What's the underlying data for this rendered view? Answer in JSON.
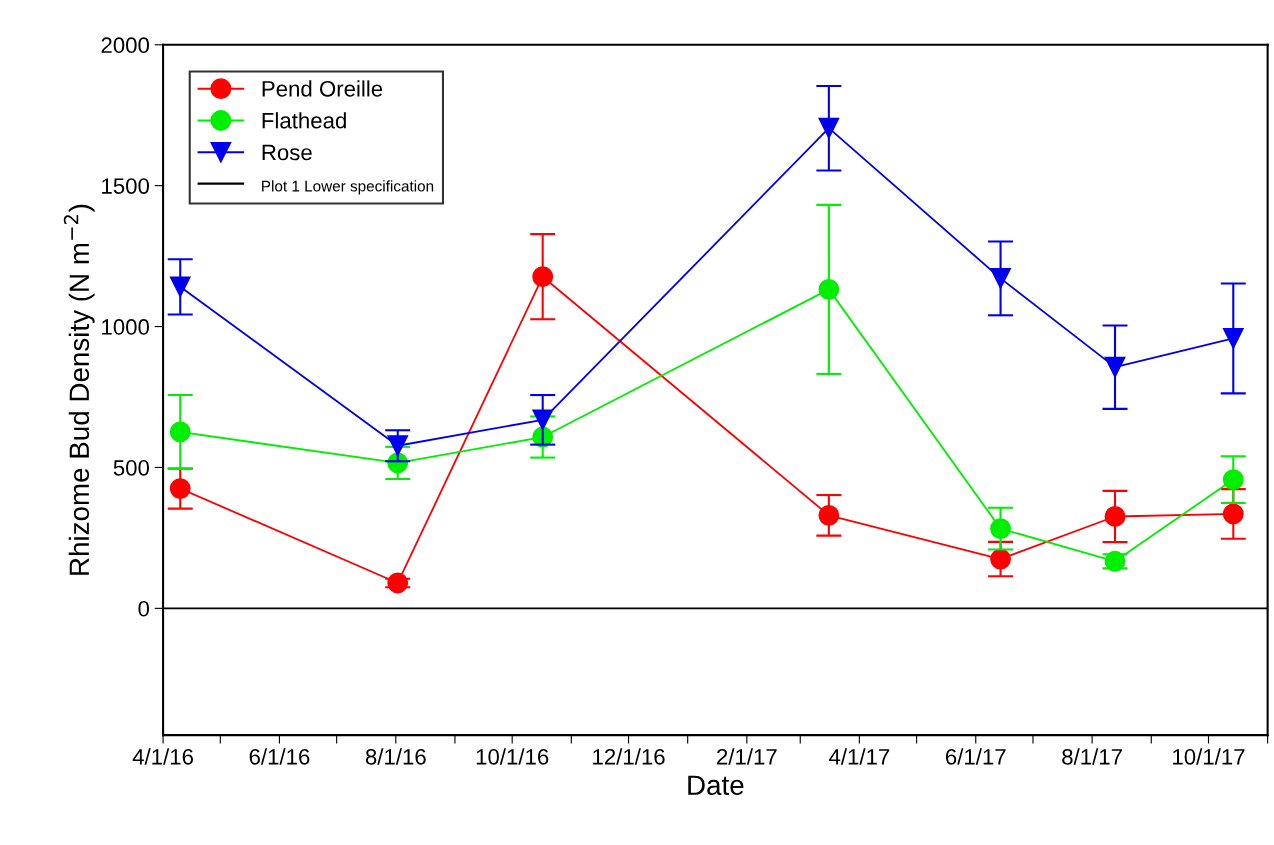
{
  "chart_data": {
    "type": "line",
    "xlabel": "Date",
    "ylabel": "Rhizome Bud Density (N m$^{−2}$)",
    "xlim": [
      "2016-04-01",
      "2017-11-01"
    ],
    "ylim": [
      -450,
      2000
    ],
    "yticks": [
      0,
      500,
      1000,
      1500,
      2000
    ],
    "xticks": [
      {
        "value": "2016-04-01",
        "label": "4/1/16"
      },
      {
        "value": "2016-05-01",
        "label": null
      },
      {
        "value": "2016-06-01",
        "label": "6/1/16"
      },
      {
        "value": "2016-07-01",
        "label": null
      },
      {
        "value": "2016-08-01",
        "label": "8/1/16"
      },
      {
        "value": "2016-09-01",
        "label": null
      },
      {
        "value": "2016-10-01",
        "label": "10/1/16"
      },
      {
        "value": "2016-11-01",
        "label": null
      },
      {
        "value": "2016-12-01",
        "label": "12/1/16"
      },
      {
        "value": "2017-01-01",
        "label": null
      },
      {
        "value": "2017-02-01",
        "label": "2/1/17"
      },
      {
        "value": "2017-03-01",
        "label": null
      },
      {
        "value": "2017-04-01",
        "label": "4/1/17"
      },
      {
        "value": "2017-05-01",
        "label": null
      },
      {
        "value": "2017-06-01",
        "label": "6/1/17"
      },
      {
        "value": "2017-07-01",
        "label": null
      },
      {
        "value": "2017-08-01",
        "label": "8/1/17"
      },
      {
        "value": "2017-09-01",
        "label": null
      },
      {
        "value": "2017-10-01",
        "label": "10/1/17"
      },
      {
        "value": "2017-11-01",
        "label": null
      }
    ],
    "x": [
      "2016-04-10",
      "2016-08-02",
      "2016-10-17",
      "2017-03-16",
      "2017-06-14",
      "2017-08-13",
      "2017-10-14"
    ],
    "series": [
      {
        "name": "Pend Oreille",
        "color": "#ff0000",
        "marker": "circle",
        "values": [
          425,
          90,
          1177,
          330,
          175,
          326,
          335
        ],
        "errors": [
          71,
          15,
          151,
          72,
          61,
          91,
          88
        ]
      },
      {
        "name": "Flathead",
        "color": "#00ee00",
        "marker": "circle",
        "values": [
          626,
          516,
          608,
          1132,
          283,
          167,
          457
        ],
        "errors": [
          131,
          57,
          73,
          300,
          74,
          25,
          83
        ]
      },
      {
        "name": "Rose",
        "color": "#0000ee",
        "marker": "triangle",
        "values": [
          1141,
          577,
          669,
          1704,
          1171,
          856,
          958
        ],
        "errors": [
          98,
          55,
          88,
          150,
          131,
          148,
          195
        ]
      }
    ],
    "ref_lines": [
      {
        "axis": "y",
        "value": 0,
        "label": "Plot 1 Lower specification",
        "color": "#000000",
        "line_style": "solid"
      }
    ],
    "grid": false,
    "legend": "top left",
    "line_style": "solid"
  }
}
